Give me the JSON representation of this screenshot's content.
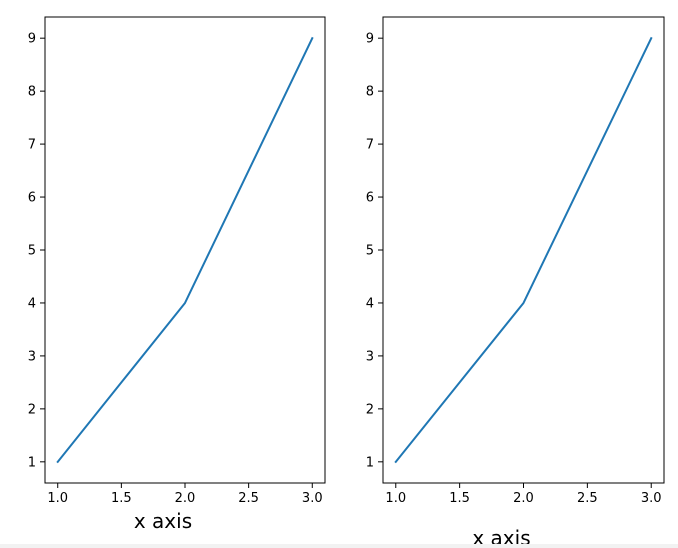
{
  "chart_data": [
    {
      "type": "line",
      "title": "",
      "xlabel": "x axis",
      "ylabel": "",
      "xlim": [
        0.9,
        3.1
      ],
      "ylim": [
        0.6,
        9.4
      ],
      "xticks": [
        1.0,
        1.5,
        2.0,
        2.5,
        3.0
      ],
      "xtick_labels": [
        "1.0",
        "1.5",
        "2.0",
        "2.5",
        "3.0"
      ],
      "yticks": [
        1,
        2,
        3,
        4,
        5,
        6,
        7,
        8,
        9
      ],
      "ytick_labels": [
        "1",
        "2",
        "3",
        "4",
        "5",
        "6",
        "7",
        "8",
        "9"
      ],
      "grid": false,
      "series": [
        {
          "x": [
            1,
            2,
            3
          ],
          "y": [
            1,
            4,
            9
          ],
          "color": "#1f77b4"
        }
      ]
    },
    {
      "type": "line",
      "title": "",
      "xlabel": "x axis",
      "ylabel": "",
      "xlim": [
        0.9,
        3.1
      ],
      "ylim": [
        0.6,
        9.4
      ],
      "xticks": [
        1.0,
        1.5,
        2.0,
        2.5,
        3.0
      ],
      "xtick_labels": [
        "1.0",
        "1.5",
        "2.0",
        "2.5",
        "3.0"
      ],
      "yticks": [
        1,
        2,
        3,
        4,
        5,
        6,
        7,
        8,
        9
      ],
      "ytick_labels": [
        "1",
        "2",
        "3",
        "4",
        "5",
        "6",
        "7",
        "8",
        "9"
      ],
      "grid": false,
      "series": [
        {
          "x": [
            1,
            2,
            3
          ],
          "y": [
            1,
            4,
            9
          ],
          "color": "#1f77b4"
        }
      ]
    }
  ]
}
